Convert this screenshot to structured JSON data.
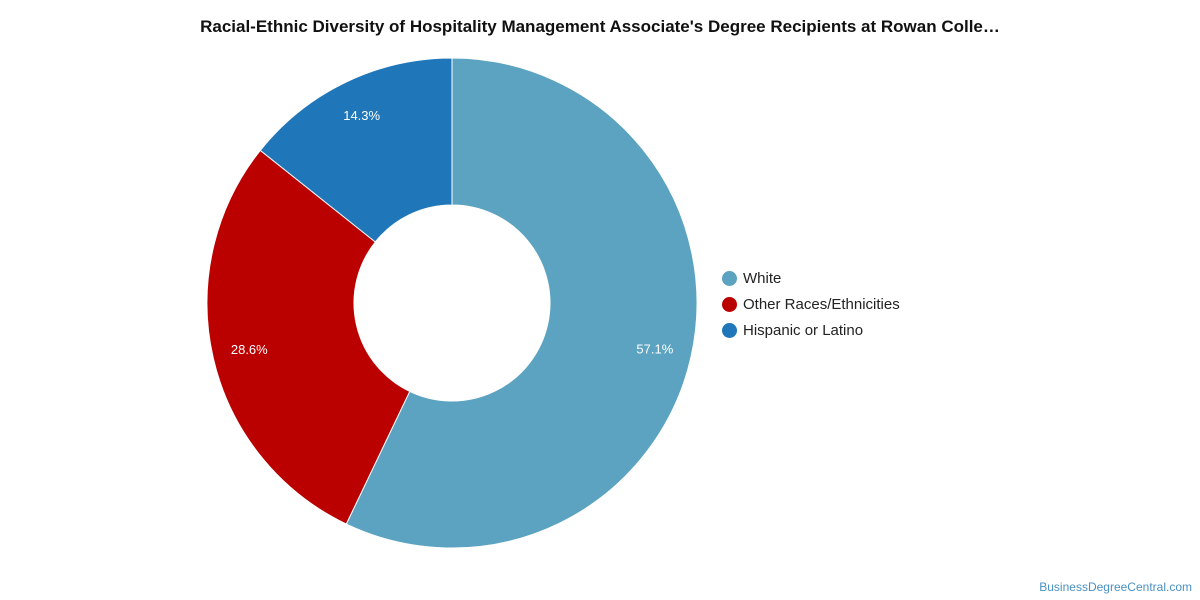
{
  "chart_data": {
    "type": "pie",
    "title": "Racial-Ethnic Diversity of Hospitality Management Associate's Degree Recipients at Rowan Colle…",
    "categories": [
      "White",
      "Other Races/Ethnicities",
      "Hispanic or Latino"
    ],
    "values": [
      57.1,
      28.6,
      14.3
    ],
    "labels": [
      "57.1%",
      "28.6%",
      "14.3%"
    ],
    "colors": [
      "#5ba3c0",
      "#bb0000",
      "#1f77b9"
    ],
    "donut": true,
    "legend_position": "right"
  },
  "watermark": "BusinessDegreeCentral.com"
}
